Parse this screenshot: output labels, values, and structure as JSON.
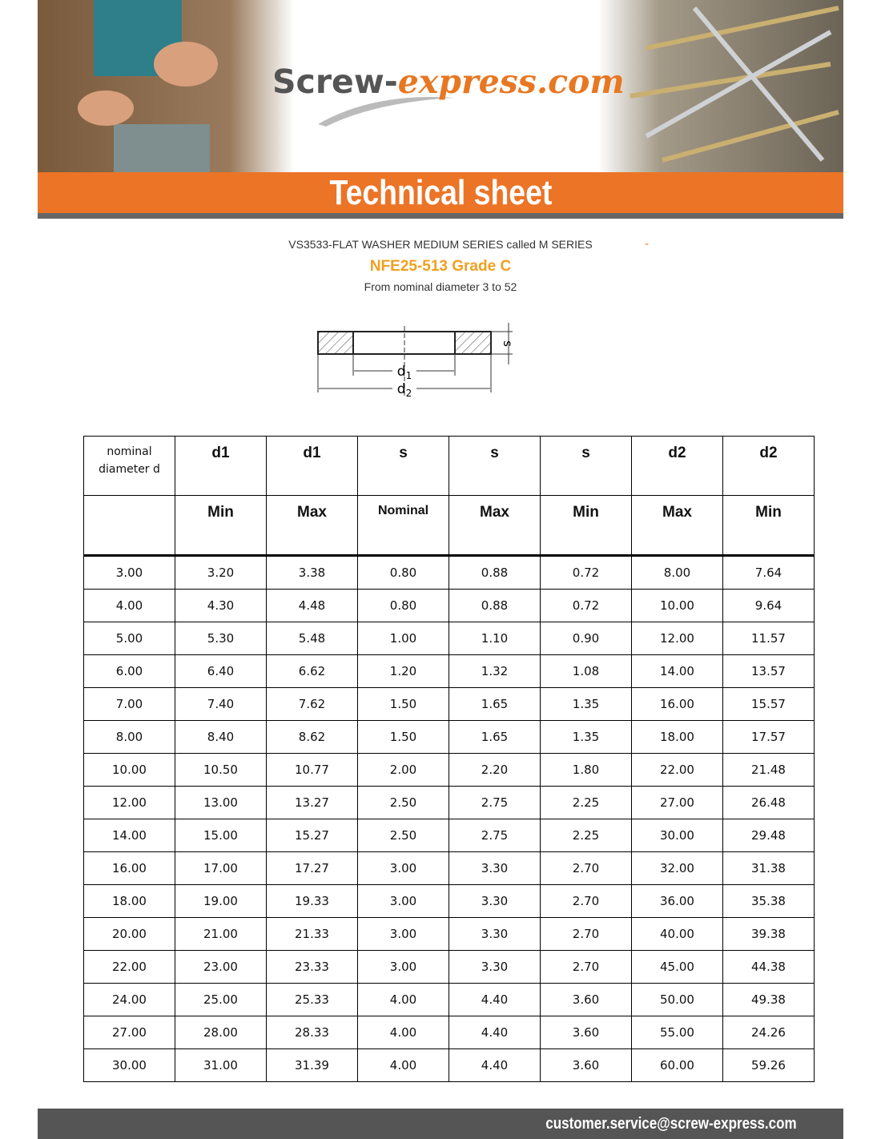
{
  "header": {
    "logo": {
      "dark": "Screw-",
      "accent": "express.com"
    },
    "banner": "Technical sheet"
  },
  "title": {
    "designation": "VS3533-FLAT WASHER MEDIUM SERIES called M SERIES",
    "mark": "-",
    "standard": "NFE25-513 Grade C",
    "range": "From nominal diameter 3 to 52"
  },
  "diagram": {
    "thickness": "s",
    "inner": {
      "symbol": "d",
      "index": "1"
    },
    "outer": {
      "symbol": "d",
      "index": "2"
    }
  },
  "table": {
    "headers": [
      "nominal diameter d",
      "d1",
      "d1",
      "s",
      "s",
      "s",
      "d2",
      "d2"
    ],
    "subheaders": [
      "Min",
      "Max",
      "Nominal",
      "Max",
      "Min",
      "Max",
      "Min"
    ],
    "rows": [
      [
        "3.00",
        "3.20",
        "3.38",
        "0.80",
        "0.88",
        "0.72",
        "8.00",
        "7.64"
      ],
      [
        "4.00",
        "4.30",
        "4.48",
        "0.80",
        "0.88",
        "0.72",
        "10.00",
        "9.64"
      ],
      [
        "5.00",
        "5.30",
        "5.48",
        "1.00",
        "1.10",
        "0.90",
        "12.00",
        "11.57"
      ],
      [
        "6.00",
        "6.40",
        "6.62",
        "1.20",
        "1.32",
        "1.08",
        "14.00",
        "13.57"
      ],
      [
        "7.00",
        "7.40",
        "7.62",
        "1.50",
        "1.65",
        "1.35",
        "16.00",
        "15.57"
      ],
      [
        "8.00",
        "8.40",
        "8.62",
        "1.50",
        "1.65",
        "1.35",
        "18.00",
        "17.57"
      ],
      [
        "10.00",
        "10.50",
        "10.77",
        "2.00",
        "2.20",
        "1.80",
        "22.00",
        "21.48"
      ],
      [
        "12.00",
        "13.00",
        "13.27",
        "2.50",
        "2.75",
        "2.25",
        "27.00",
        "26.48"
      ],
      [
        "14.00",
        "15.00",
        "15.27",
        "2.50",
        "2.75",
        "2.25",
        "30.00",
        "29.48"
      ],
      [
        "16.00",
        "17.00",
        "17.27",
        "3.00",
        "3.30",
        "2.70",
        "32.00",
        "31.38"
      ],
      [
        "18.00",
        "19.00",
        "19.33",
        "3.00",
        "3.30",
        "2.70",
        "36.00",
        "35.38"
      ],
      [
        "20.00",
        "21.00",
        "21.33",
        "3.00",
        "3.30",
        "2.70",
        "40.00",
        "39.38"
      ],
      [
        "22.00",
        "23.00",
        "23.33",
        "3.00",
        "3.30",
        "2.70",
        "45.00",
        "44.38"
      ],
      [
        "24.00",
        "25.00",
        "25.33",
        "4.00",
        "4.40",
        "3.60",
        "50.00",
        "49.38"
      ],
      [
        "27.00",
        "28.00",
        "28.33",
        "4.00",
        "4.40",
        "3.60",
        "55.00",
        "24.26"
      ],
      [
        "30.00",
        "31.00",
        "31.39",
        "4.00",
        "4.40",
        "3.60",
        "60.00",
        "59.26"
      ]
    ]
  },
  "footer": {
    "email": "customer.service@screw-express.com"
  }
}
